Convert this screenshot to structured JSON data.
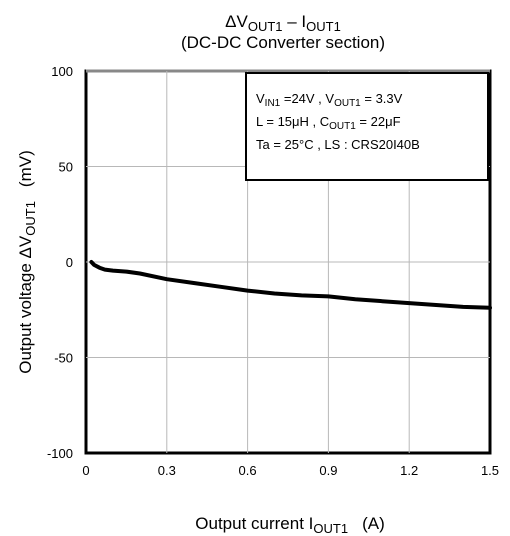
{
  "chart_data": {
    "type": "line",
    "title_main": "ΔV",
    "title_sub_out": "OUT1",
    "title_dash": " – I",
    "title_sub_out2": "OUT1",
    "subtitle": "(DC-DC Converter section)",
    "xlabel_prefix": "Output current   I",
    "xlabel_sub": "OUT1",
    "xlabel_unit": "(A)",
    "ylabel_prefix": "Output voltage   ΔV",
    "ylabel_sub": "OUT1",
    "ylabel_unit": "(mV)",
    "xlim": [
      0,
      1.5
    ],
    "ylim": [
      -100,
      100
    ],
    "x_ticks": [
      "0",
      "0.3",
      "0.6",
      "0.9",
      "1.2",
      "1.5"
    ],
    "y_ticks": [
      "100",
      "50",
      "0",
      "-50",
      "-100"
    ],
    "grid": true,
    "legend_box": {
      "line1": {
        "a": "V",
        "a_sub": "IN1",
        "b": " =24V , V",
        "b_sub": "OUT1",
        "c": " = 3.3V"
      },
      "line2": {
        "a": "L = 15μH , C",
        "a_sub": "OUT1",
        "b": " = 22μF"
      },
      "line3": {
        "a": "Ta = 25°C , LS : CRS20I40B"
      }
    },
    "series": [
      {
        "x": [
          0.02,
          0.03,
          0.05,
          0.07,
          0.1,
          0.15,
          0.2,
          0.3,
          0.4,
          0.5,
          0.6,
          0.7,
          0.8,
          0.9,
          1.0,
          1.1,
          1.2,
          1.3,
          1.4,
          1.5
        ],
        "values": [
          0,
          -1.5,
          -3,
          -4,
          -4.5,
          -5,
          -6,
          -9,
          -11,
          -13,
          -15,
          -16.5,
          -17.5,
          -18,
          -19.5,
          -20.5,
          -21.5,
          -22.5,
          -23.5,
          -24
        ],
        "color": "#000000"
      }
    ]
  }
}
